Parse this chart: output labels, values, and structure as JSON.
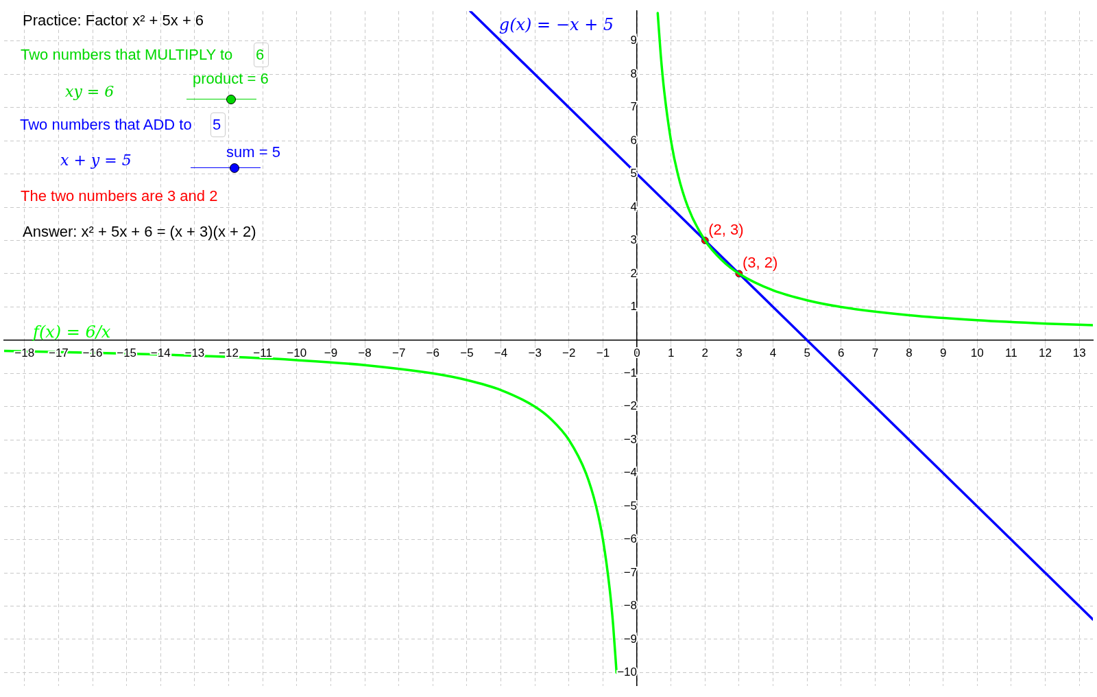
{
  "chart_data": {
    "type": "line",
    "xlim": [
      -18.6,
      13.4
    ],
    "ylim": [
      -10.4,
      9.9
    ],
    "xticks": [
      -18,
      -17,
      -16,
      -15,
      -14,
      -13,
      -12,
      -11,
      -10,
      -9,
      -8,
      -7,
      -6,
      -5,
      -4,
      -3,
      -2,
      -1,
      0,
      1,
      2,
      3,
      4,
      5,
      6,
      7,
      8,
      9,
      10,
      11,
      12,
      13
    ],
    "yticks": [
      -10,
      -9,
      -8,
      -7,
      -6,
      -5,
      -4,
      -3,
      -2,
      -1,
      {
        "value": 0,
        "label": null
      },
      1,
      2,
      3,
      4,
      5,
      6,
      7,
      8,
      9
    ],
    "grid": true,
    "legend": false,
    "marker": "none",
    "line_style": "solid",
    "series": [
      {
        "name": "f(x) = 6/x",
        "color": "#00ff00",
        "x": [
          -18.6,
          -16,
          -14,
          -11.5,
          -10,
          -8,
          -6,
          -5,
          -4,
          -3,
          -2.5,
          -2,
          -1.5,
          -1.2,
          -1,
          -0.8,
          -0.7,
          -0.6,
          0,
          0.61,
          0.7,
          0.8,
          1,
          1.2,
          1.5,
          2,
          2.5,
          3,
          4,
          5,
          6,
          8,
          10,
          12,
          13.4
        ],
        "values": [
          -0.32,
          -0.38,
          -0.43,
          -0.52,
          -0.6,
          -0.75,
          -1,
          -1.2,
          -1.5,
          -2,
          -2.4,
          -3,
          -4,
          -5,
          -6,
          -7.5,
          -8.57,
          -10,
          null,
          9.84,
          8.57,
          7.5,
          6,
          5,
          4,
          3,
          2.4,
          2,
          1.5,
          1.2,
          1,
          0.75,
          0.6,
          0.5,
          0.45
        ]
      },
      {
        "name": "g(x) = −x + 5",
        "color": "#0000ff",
        "x": [
          -4.9,
          13.4
        ],
        "values": [
          9.9,
          -8.4
        ]
      },
      {
        "type": "scatter",
        "color": "#ff0000",
        "marker": "circle",
        "x": [
          2,
          3
        ],
        "values": [
          3,
          2
        ],
        "value_labels": [
          "(2, 3)",
          "(3, 2)"
        ]
      }
    ],
    "annotations": [
      "Practice: Factor x² + 5x + 6",
      "Two numbers that MULTIPLY to",
      "6",
      "xy = 6",
      "product = 6",
      "Two numbers that ADD to",
      "5",
      "x + y = 5",
      "sum = 5",
      "The two numbers are 3 and 2",
      "Answer: x² + 5x + 6 = (x + 3)(x + 2)"
    ]
  }
}
